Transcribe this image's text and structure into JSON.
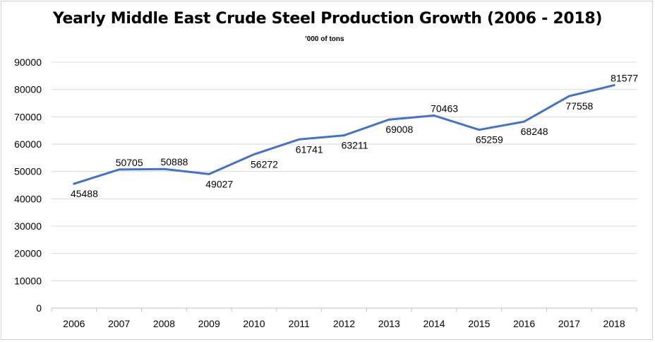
{
  "chart_data": {
    "type": "line",
    "title": "Yearly Middle East Crude Steel Production Growth (2006 - 2018)",
    "subtitle": "'000 of tons",
    "xlabel": "",
    "ylabel": "",
    "categories": [
      "2006",
      "2007",
      "2008",
      "2009",
      "2010",
      "2011",
      "2012",
      "2013",
      "2014",
      "2015",
      "2016",
      "2017",
      "2018"
    ],
    "series": [
      {
        "values": [
          45488,
          50705,
          50888,
          49027,
          56272,
          61741,
          63211,
          69008,
          70463,
          65259,
          68248,
          77558,
          81577
        ]
      }
    ],
    "ylim": [
      0,
      90000
    ],
    "yticks": [
      0,
      10000,
      20000,
      30000,
      40000,
      50000,
      60000,
      70000,
      80000,
      90000
    ],
    "grid": "horizontal",
    "legend": "none",
    "line_color": "#4472c4",
    "grid_color": "#d9d9d9",
    "axis_color": "#bfbfbf",
    "data_labels": true,
    "label_positions": [
      "below",
      "above",
      "above",
      "below",
      "below",
      "below",
      "below",
      "below",
      "above",
      "below",
      "below",
      "below",
      "above"
    ]
  }
}
